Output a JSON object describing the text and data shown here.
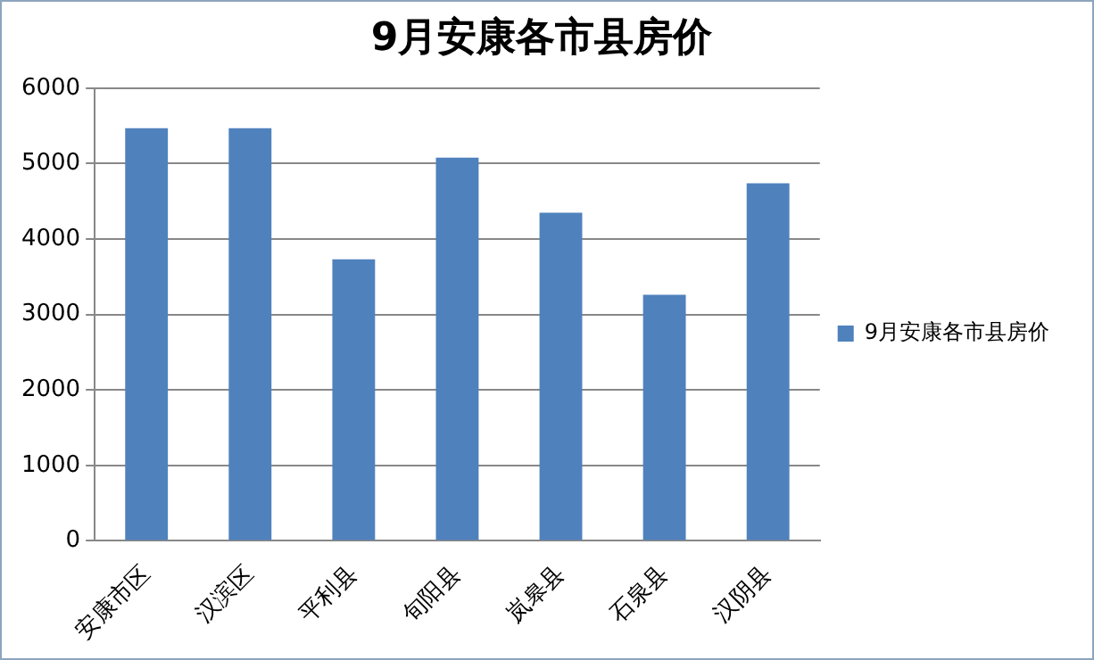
{
  "chart_data": {
    "type": "bar",
    "title": "9月安康各市县房价",
    "categories": [
      "安康市区",
      "汉滨区",
      "平利县",
      "旬阳县",
      "岚皋县",
      "石泉县",
      "汉阴县"
    ],
    "series": [
      {
        "name": "9月安康各市县房价",
        "color": "#4f81bd",
        "values": [
          5470,
          5470,
          3730,
          5080,
          4350,
          3260,
          4740
        ]
      }
    ],
    "ylim": [
      0,
      6000
    ],
    "yticks": [
      0,
      1000,
      2000,
      3000,
      4000,
      5000,
      6000
    ],
    "grid": "y",
    "legend": "right"
  }
}
